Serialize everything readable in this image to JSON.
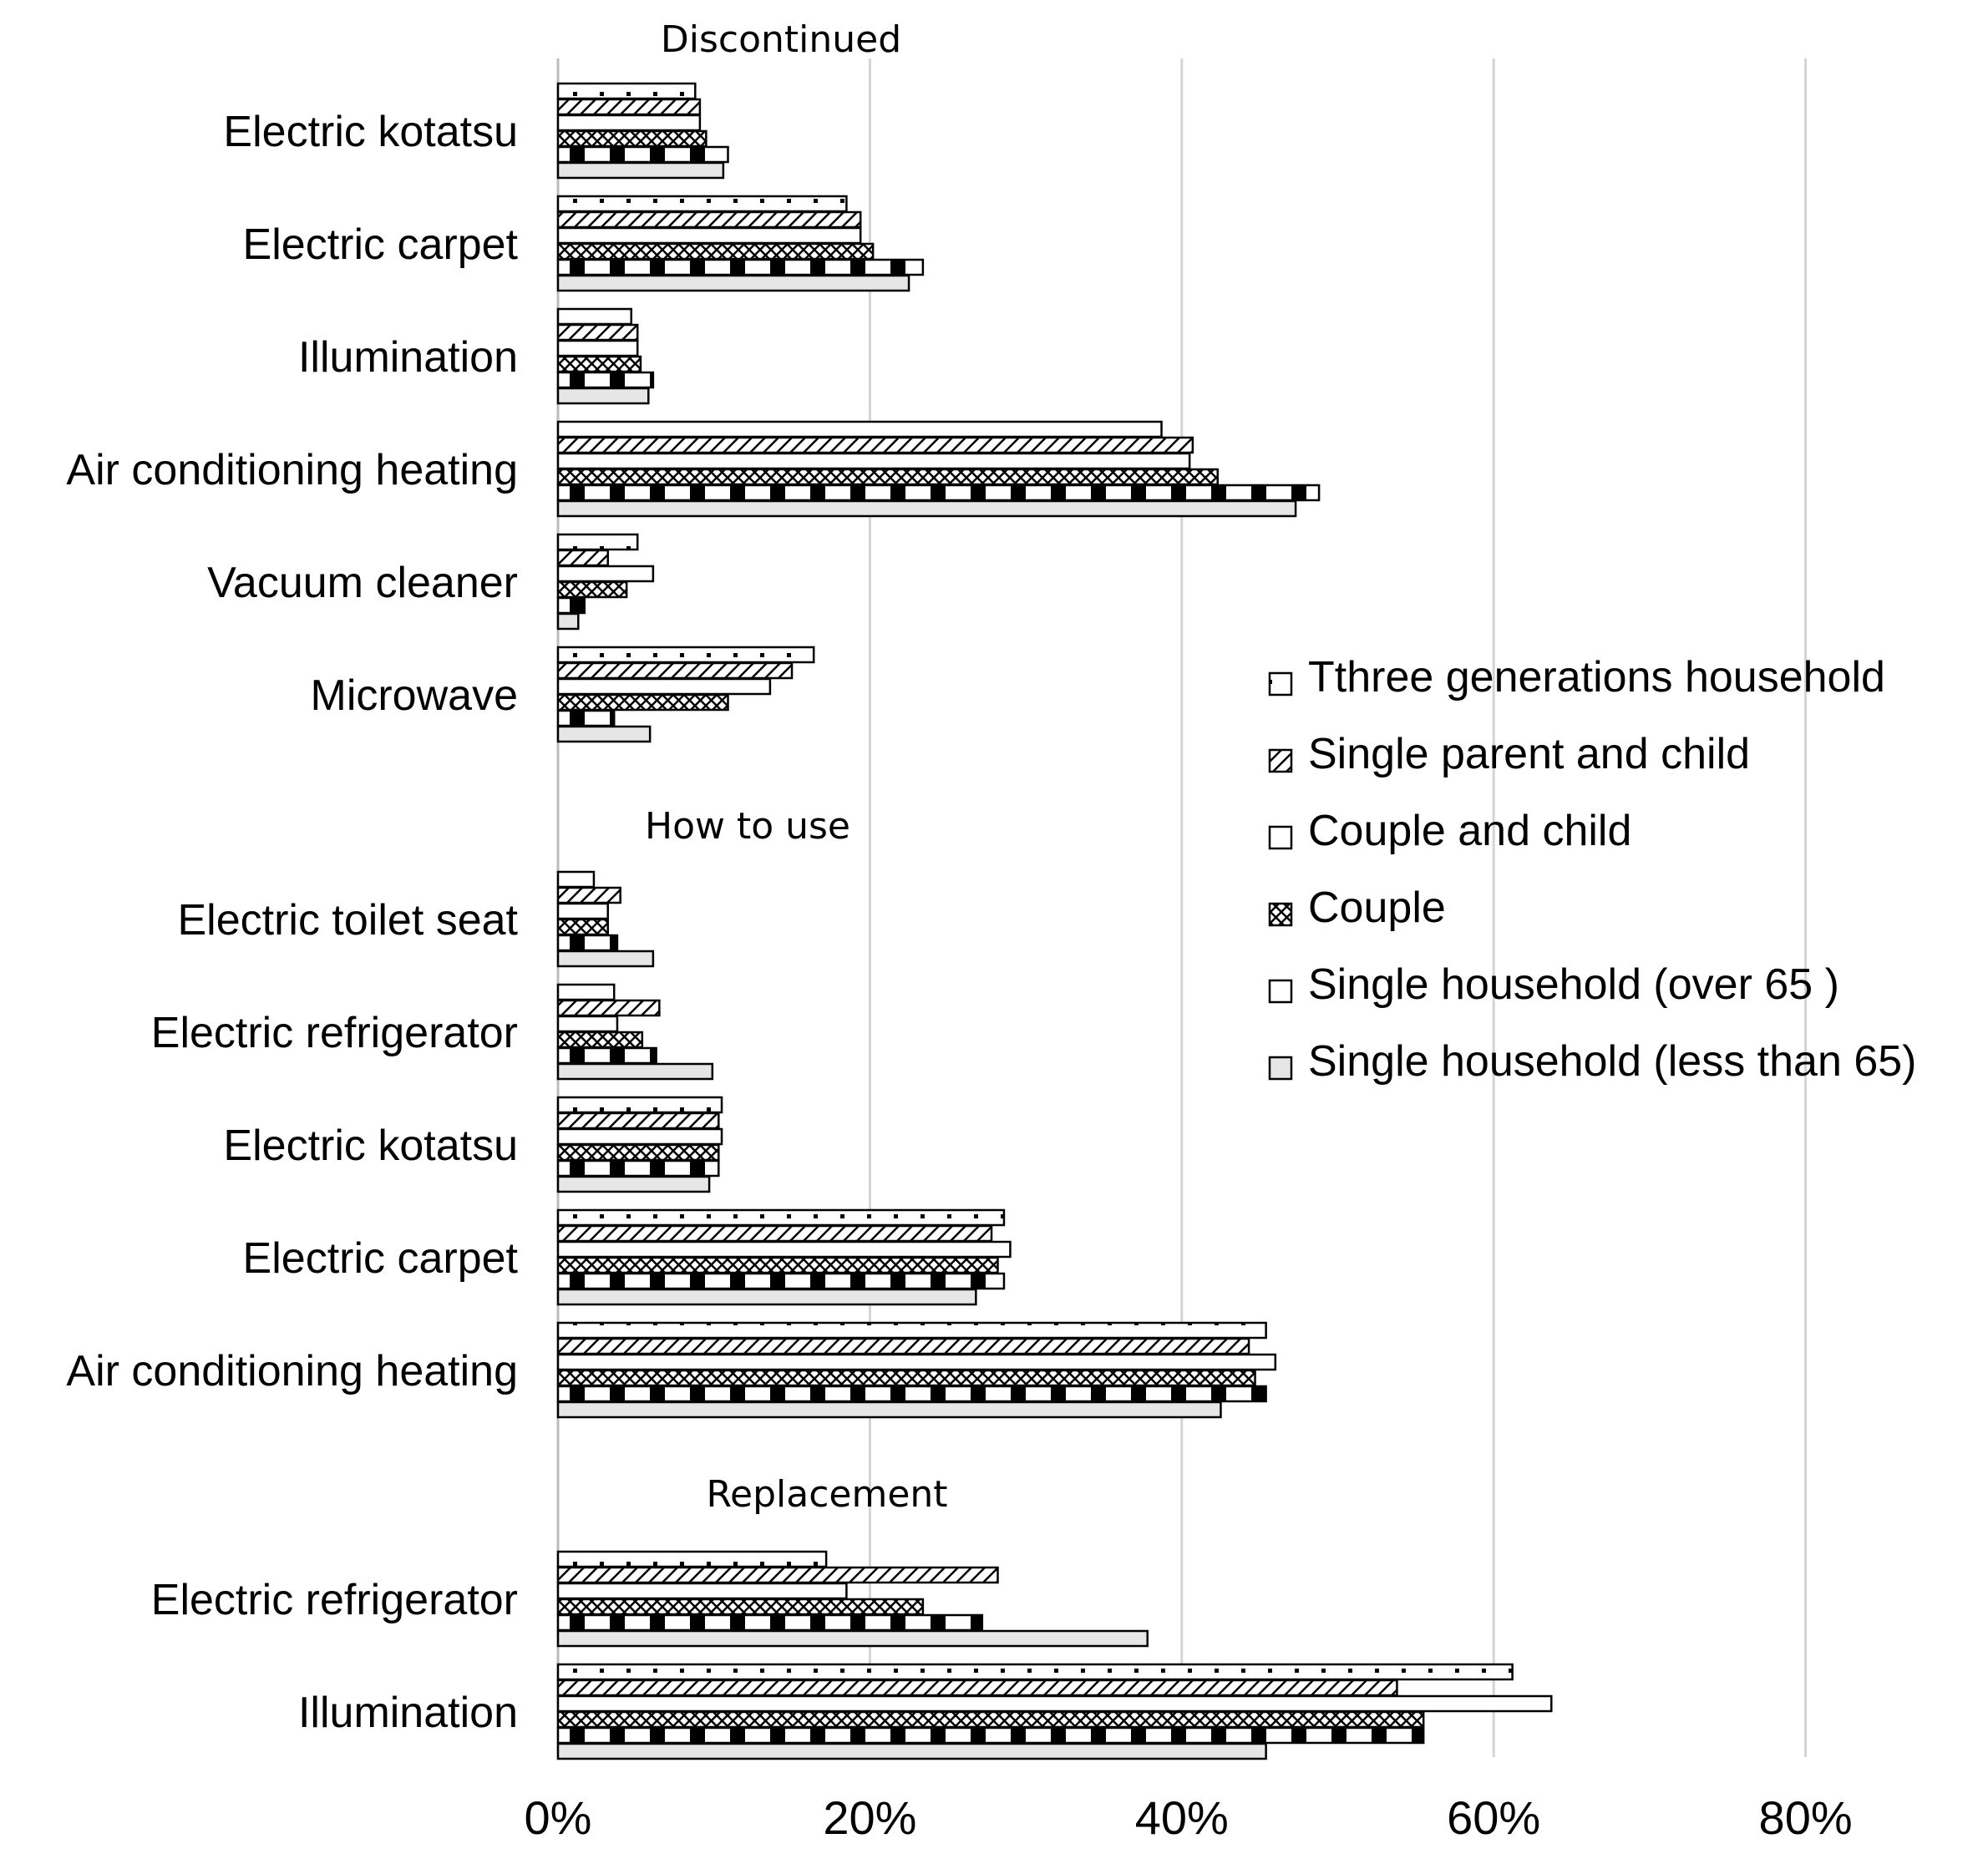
{
  "chart_data": {
    "type": "bar",
    "orientation": "horizontal",
    "x_ticks": [
      "0%",
      "20%",
      "40%",
      "60%",
      "80%"
    ],
    "xlim": [
      0,
      90
    ],
    "grid": true,
    "legend_position": "right",
    "series_names": [
      "Tthree generations household",
      "Single parent and child",
      "Couple and child",
      "Couple",
      "Single household (over 65 )",
      "Single household (less than 65)"
    ],
    "sections": [
      {
        "title": "Discontinued",
        "categories": [
          {
            "label": "Electric kotatsu",
            "values": [
              8.8,
              9.1,
              9.1,
              9.5,
              10.9,
              10.6
            ]
          },
          {
            "label": "Electric carpet",
            "values": [
              18.5,
              19.4,
              19.4,
              20.2,
              23.4,
              22.5
            ]
          },
          {
            "label": "Illumination",
            "values": [
              4.7,
              5.1,
              5.1,
              5.3,
              6.1,
              5.8
            ]
          },
          {
            "label": "Air conditioning heating",
            "values": [
              38.7,
              40.7,
              40.5,
              42.3,
              48.8,
              47.3
            ]
          },
          {
            "label": "Vacuum cleaner",
            "values": [
              5.1,
              3.2,
              6.1,
              4.4,
              1.7,
              1.3
            ]
          },
          {
            "label": "Microwave",
            "values": [
              16.4,
              15.0,
              13.6,
              10.9,
              3.6,
              5.9
            ]
          }
        ]
      },
      {
        "title": "How to use",
        "categories": [
          {
            "label": "Electric toilet seat",
            "values": [
              2.3,
              4.0,
              3.2,
              3.2,
              3.8,
              6.1
            ]
          },
          {
            "label": "Electric refrigerator",
            "values": [
              3.6,
              6.5,
              3.8,
              5.4,
              6.3,
              9.9
            ]
          },
          {
            "label": "Electric kotatsu",
            "values": [
              10.5,
              10.3,
              10.5,
              10.3,
              10.3,
              9.7
            ]
          },
          {
            "label": "Electric carpet",
            "values": [
              28.6,
              27.8,
              29.0,
              28.2,
              28.6,
              26.8
            ]
          },
          {
            "label": "Air conditioning heating",
            "values": [
              45.4,
              44.3,
              46.0,
              44.7,
              45.4,
              42.5
            ]
          }
        ]
      },
      {
        "title": "Replacement",
        "categories": [
          {
            "label": "Electric refrigerator",
            "values": [
              17.2,
              28.2,
              18.5,
              23.4,
              27.2,
              37.8
            ]
          },
          {
            "label": "Illumination",
            "values": [
              61.2,
              53.8,
              63.7,
              55.5,
              55.5,
              45.4
            ]
          }
        ]
      }
    ]
  }
}
